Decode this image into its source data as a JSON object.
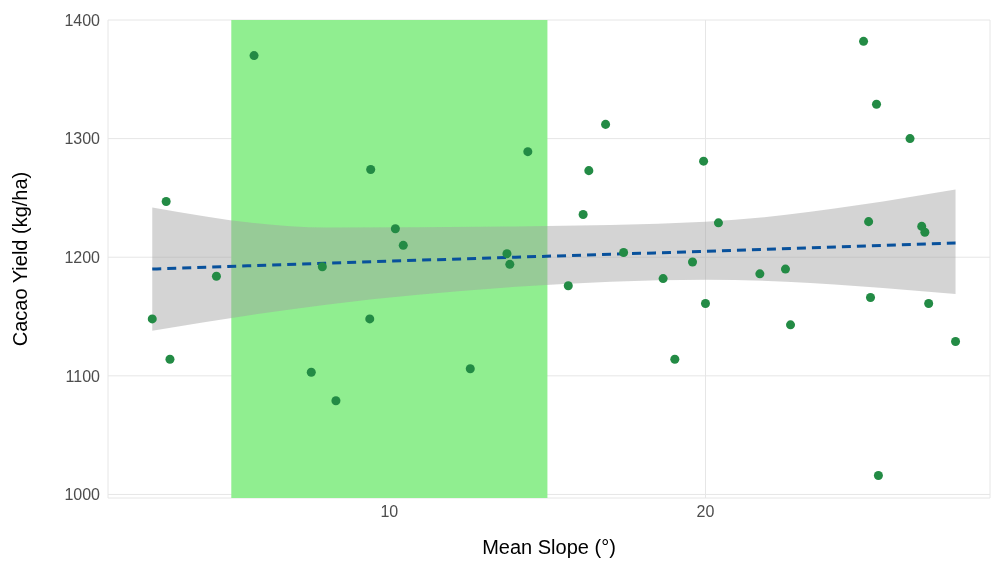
{
  "chart_data": {
    "type": "scatter",
    "xlabel": "Mean Slope (°)",
    "ylabel": "Cacao Yield (kg/ha)",
    "xlim": [
      1.1,
      29
    ],
    "ylim": [
      997,
      1400
    ],
    "xticks": [
      10,
      20
    ],
    "yticks": [
      1000,
      1100,
      1200,
      1300,
      1400
    ],
    "grid": true,
    "bands": [
      {
        "axis": "x",
        "from": 5,
        "to": 15,
        "color": "#90ee90"
      }
    ],
    "series": [
      {
        "color": "#238b45",
        "marker": "circle",
        "x": [
          2.5,
          2.94,
          3.06,
          4.53,
          5.72,
          7.53,
          7.88,
          8.31,
          9.38,
          9.41,
          10.19,
          10.44,
          12.56,
          13.72,
          13.81,
          14.38,
          15.66,
          16.13,
          16.31,
          16.84,
          17.41,
          18.66,
          19.03,
          19.59,
          19.94,
          20.0,
          20.41,
          21.72,
          22.53,
          22.69,
          25.0,
          25.16,
          25.22,
          25.41,
          25.47,
          26.47,
          26.84,
          26.94,
          27.06,
          27.91
        ],
        "values": [
          1148,
          1247,
          1114,
          1184,
          1370,
          1103,
          1192,
          1079,
          1148,
          1274,
          1224,
          1210,
          1106,
          1203,
          1194,
          1289,
          1176,
          1236,
          1273,
          1312,
          1204,
          1182,
          1114,
          1196,
          1281,
          1161,
          1229,
          1186,
          1190,
          1143,
          1382,
          1230,
          1166,
          1329,
          1016,
          1300,
          1226,
          1221,
          1161,
          1129
        ]
      },
      {
        "type": "line",
        "color": "#08519c",
        "marker": "none",
        "line_style": "dashed",
        "x": [
          2.5,
          8,
          14,
          20,
          27.91
        ],
        "values": [
          1190,
          1195,
          1200,
          1205,
          1212
        ],
        "lower": [
          1138,
          1160,
          1175,
          1181,
          1169
        ],
        "upper": [
          1242,
          1225,
          1226,
          1230,
          1257
        ]
      }
    ]
  }
}
